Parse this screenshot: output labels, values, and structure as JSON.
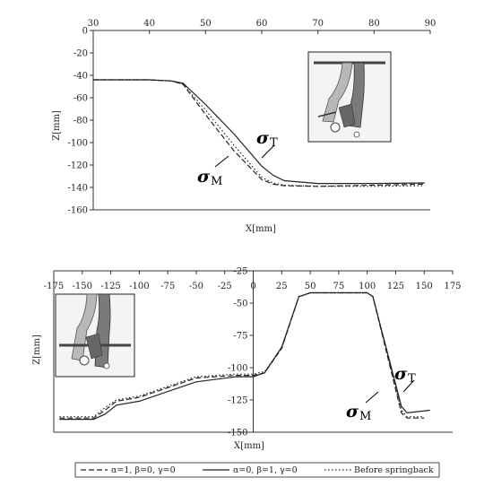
{
  "chart_data": [
    {
      "type": "line",
      "xlabel": "X[mm]",
      "ylabel": "Z[mm]",
      "xlim": [
        30,
        90
      ],
      "ylim": [
        -160,
        0
      ],
      "xticks": [
        "30",
        "40",
        "50",
        "60",
        "70",
        "80",
        "90"
      ],
      "yticks": [
        "0",
        "-20",
        "-40",
        "-60",
        "-80",
        "-100",
        "-120",
        "-140",
        "-160"
      ],
      "grid": false,
      "annotations": [
        {
          "symbol": "σ",
          "sub": "T",
          "x": 61.5,
          "y": -100
        },
        {
          "symbol": "σ",
          "sub": "M",
          "x": 48.5,
          "y": -142
        }
      ],
      "series": [
        {
          "name": "α=1, β=0, γ=0",
          "style": "dashed",
          "x": [
            30,
            40,
            44,
            46,
            50,
            55,
            60,
            62,
            64,
            70,
            80,
            89
          ],
          "y": [
            -44,
            -44,
            -45,
            -48,
            -75,
            -107,
            -133,
            -137,
            -138.5,
            -139,
            -138,
            -137
          ]
        },
        {
          "name": "α=0, β=1, γ=0",
          "style": "solid",
          "x": [
            30,
            40,
            44,
            46,
            50,
            55,
            60,
            62,
            64,
            70,
            80,
            89
          ],
          "y": [
            -44,
            -44,
            -45,
            -47,
            -66,
            -92,
            -121,
            -129,
            -134,
            -136.5,
            -136.5,
            -136
          ]
        },
        {
          "name": "Before springback",
          "style": "dotted",
          "x": [
            30,
            40,
            44,
            46,
            50,
            55,
            60,
            62,
            64,
            70,
            80,
            89
          ],
          "y": [
            -44,
            -44,
            -45,
            -48,
            -71,
            -102,
            -131,
            -136,
            -138,
            -139,
            -139,
            -138.5
          ]
        }
      ]
    },
    {
      "type": "line",
      "xlabel": "X[mm]",
      "ylabel": "Z[mm]",
      "xlim": [
        -175,
        175
      ],
      "ylim": [
        -150,
        -25
      ],
      "xticks": [
        "-175",
        "-150",
        "-125",
        "-100",
        "-75",
        "-50",
        "-25",
        "0",
        "25",
        "50",
        "75",
        "100",
        "125",
        "150",
        "175"
      ],
      "yticks": [
        "-25",
        "-50",
        "-75",
        "-100",
        "-125",
        "-150"
      ],
      "grid": false,
      "annotations": [
        {
          "symbol": "σ",
          "sub": "T",
          "x": 130,
          "y": -113
        },
        {
          "symbol": "σ",
          "sub": "M",
          "x": 95,
          "y": -135
        }
      ],
      "series": [
        {
          "name": "α=1, β=0, γ=0",
          "style": "dashed",
          "x": [
            -170,
            -140,
            -130,
            -120,
            -100,
            -50,
            -15,
            0,
            10,
            25,
            40,
            50,
            100,
            105,
            130,
            135,
            150
          ],
          "y": [
            -139,
            -139,
            -133,
            -126,
            -123,
            -108,
            -106,
            -106,
            -104,
            -85,
            -45,
            -42,
            -42,
            -45,
            -135,
            -139,
            -139
          ]
        },
        {
          "name": "α=0, β=1, γ=0",
          "style": "solid",
          "x": [
            -170,
            -140,
            -130,
            -120,
            -100,
            -50,
            -15,
            0,
            10,
            25,
            40,
            50,
            100,
            105,
            130,
            135,
            155
          ],
          "y": [
            -140,
            -140,
            -136,
            -129,
            -126,
            -111,
            -107,
            -107,
            -104,
            -84,
            -45,
            -42,
            -42,
            -45,
            -130,
            -135,
            -133
          ]
        },
        {
          "name": "Before springback",
          "style": "dotted",
          "x": [
            -170,
            -140,
            -130,
            -120,
            -100,
            -50,
            -15,
            0,
            10,
            25,
            40,
            50,
            100,
            105,
            130,
            135,
            150
          ],
          "y": [
            -138,
            -138,
            -131,
            -125,
            -122,
            -107,
            -105,
            -105,
            -103,
            -85,
            -45,
            -42,
            -42,
            -45,
            -133,
            -138,
            -138
          ]
        }
      ]
    }
  ],
  "legend": {
    "placement": "bottom",
    "items": [
      {
        "label": "α=1, β=0, γ=0",
        "style": "dashed"
      },
      {
        "label": "α=0, β=1, γ=0",
        "style": "solid"
      },
      {
        "label": "Before springback",
        "style": "dotted"
      }
    ]
  },
  "colors": {
    "line": "#222222",
    "axis": "#333333",
    "inset_bg": "#f4f4f4"
  }
}
